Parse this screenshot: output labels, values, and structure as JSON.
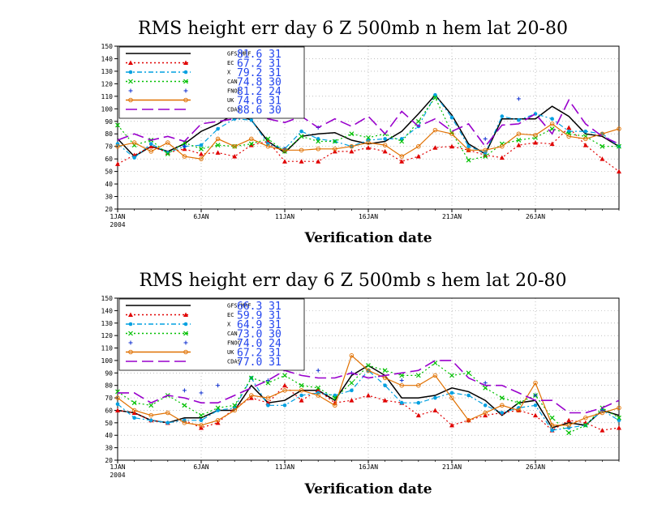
{
  "chart_data": [
    {
      "type": "line",
      "title": "RMS height err   day 6  Z 500mb   n hem   lat 20-80",
      "xlabel": "Verification date",
      "ylim": [
        20,
        150
      ],
      "yticks": [
        20,
        30,
        40,
        50,
        60,
        70,
        80,
        90,
        100,
        110,
        120,
        130,
        140,
        150
      ],
      "x_ticks": [
        {
          "day": 1,
          "label": "1JAN",
          "sub": "2004"
        },
        {
          "day": 6,
          "label": "6JAN"
        },
        {
          "day": 11,
          "label": "11JAN"
        },
        {
          "day": 16,
          "label": "16JAN"
        },
        {
          "day": 21,
          "label": "21JAN"
        },
        {
          "day": 26,
          "label": "26JAN"
        }
      ],
      "grid": true,
      "legend_position": "top-left",
      "series": [
        {
          "name": "GFS/MRF",
          "mean": "81.6",
          "count": "31",
          "color": "#000000",
          "marker": "none",
          "style": "solid",
          "values": [
            76,
            62,
            70,
            66,
            72,
            82,
            88,
            96,
            91,
            74,
            65,
            78,
            80,
            81,
            75,
            72,
            74,
            82,
            96,
            111,
            95,
            72,
            64,
            92,
            92,
            92,
            102,
            94,
            80,
            78,
            70
          ]
        },
        {
          "name": "EC",
          "mean": "67.2",
          "count": "31",
          "color": "#e00000",
          "marker": "triangle",
          "style": "dotted",
          "values": [
            56,
            63,
            70,
            65,
            68,
            64,
            65,
            62,
            71,
            74,
            58,
            58,
            58,
            66,
            66,
            69,
            66,
            58,
            62,
            69,
            70,
            67,
            63,
            61,
            71,
            73,
            72,
            85,
            71,
            60,
            50
          ]
        },
        {
          "name": "X",
          "mean": "79.2",
          "count": "31",
          "color": "#00a0e0",
          "marker": "dot",
          "style": "dashdot",
          "values": [
            72,
            61,
            72,
            65,
            70,
            71,
            84,
            92,
            91,
            72,
            68,
            82,
            76,
            74,
            70,
            75,
            76,
            76,
            86,
            111,
            93,
            70,
            65,
            94,
            91,
            96,
            92,
            82,
            82,
            80,
            70
          ]
        },
        {
          "name": "CAN",
          "mean": "74.8",
          "count": "30",
          "color": "#00c000",
          "marker": "x",
          "style": "dotted",
          "values": [
            87,
            71,
            75,
            64,
            73,
            68,
            71,
            70,
            72,
            76,
            66,
            78,
            74,
            74,
            80,
            77,
            80,
            74,
            90,
            109,
            81,
            59,
            62,
            72,
            75,
            77,
            84,
            80,
            78,
            70,
            70
          ]
        },
        {
          "name": "FNOC",
          "mean": "81.2",
          "count": "24",
          "color": "#1030d0",
          "marker": "plus",
          "style": "none",
          "values": [
            null,
            null,
            null,
            null,
            70,
            null,
            null,
            98,
            100,
            null,
            68,
            null,
            85,
            null,
            null,
            null,
            null,
            null,
            null,
            null,
            null,
            null,
            76,
            null,
            108,
            null,
            null,
            null,
            null,
            null,
            null
          ]
        },
        {
          "name": "UK",
          "mean": "74.6",
          "count": "31",
          "color": "#e07000",
          "marker": "circle",
          "style": "solid",
          "values": [
            70,
            73,
            66,
            73,
            62,
            60,
            76,
            70,
            76,
            70,
            67,
            67,
            68,
            68,
            70,
            73,
            71,
            62,
            70,
            83,
            80,
            67,
            67,
            70,
            80,
            79,
            88,
            78,
            76,
            80,
            84
          ]
        },
        {
          "name": "CDAS",
          "mean": "88.6",
          "count": "30",
          "color": "#9900cc",
          "marker": "none",
          "style": "longdash",
          "values": [
            75,
            80,
            75,
            78,
            74,
            88,
            90,
            92,
            96,
            92,
            89,
            94,
            85,
            92,
            86,
            94,
            80,
            98,
            86,
            92,
            82,
            88,
            70,
            87,
            88,
            96,
            80,
            107,
            88,
            78,
            72
          ]
        }
      ]
    },
    {
      "type": "line",
      "title": "RMS height err   day 6  Z 500mb   s hem   lat 20-80",
      "xlabel": "Verification date",
      "ylim": [
        20,
        150
      ],
      "yticks": [
        20,
        30,
        40,
        50,
        60,
        70,
        80,
        90,
        100,
        110,
        120,
        130,
        140,
        150
      ],
      "x_ticks": [
        {
          "day": 1,
          "label": "1JAN",
          "sub": "2004"
        },
        {
          "day": 6,
          "label": "6JAN"
        },
        {
          "day": 11,
          "label": "11JAN"
        },
        {
          "day": 16,
          "label": "16JAN"
        },
        {
          "day": 21,
          "label": "21JAN"
        },
        {
          "day": 26,
          "label": "26JAN"
        }
      ],
      "grid": true,
      "legend_position": "top-left",
      "series": [
        {
          "name": "GFS/MRF",
          "mean": "66.3",
          "count": "31",
          "color": "#000000",
          "marker": "none",
          "style": "solid",
          "values": [
            60,
            58,
            52,
            50,
            54,
            54,
            60,
            60,
            80,
            66,
            68,
            76,
            76,
            68,
            88,
            96,
            88,
            70,
            70,
            72,
            78,
            75,
            68,
            56,
            66,
            68,
            46,
            50,
            48,
            60,
            56
          ]
        },
        {
          "name": "EC",
          "mean": "59.9",
          "count": "31",
          "color": "#e00000",
          "marker": "triangle",
          "style": "dotted",
          "values": [
            60,
            58,
            52,
            50,
            52,
            46,
            50,
            62,
            70,
            66,
            80,
            68,
            76,
            66,
            68,
            72,
            68,
            66,
            56,
            60,
            48,
            52,
            56,
            58,
            60,
            56,
            44,
            52,
            50,
            44,
            46
          ]
        },
        {
          "name": "X",
          "mean": "64.9",
          "count": "31",
          "color": "#00a0e0",
          "marker": "dot",
          "style": "dashdot",
          "values": [
            65,
            54,
            52,
            50,
            52,
            52,
            60,
            62,
            86,
            64,
            64,
            72,
            74,
            72,
            76,
            92,
            80,
            66,
            66,
            70,
            74,
            72,
            64,
            58,
            62,
            64,
            44,
            46,
            48,
            60,
            52
          ]
        },
        {
          "name": "CAN",
          "mean": "73.0",
          "count": "30",
          "color": "#00c000",
          "marker": "x",
          "style": "dotted",
          "values": [
            75,
            66,
            64,
            72,
            64,
            56,
            62,
            64,
            86,
            82,
            88,
            80,
            78,
            70,
            82,
            96,
            92,
            88,
            88,
            98,
            88,
            90,
            78,
            70,
            66,
            72,
            54,
            42,
            48,
            62,
            54
          ]
        },
        {
          "name": "FNOC",
          "mean": "74.0",
          "count": "24",
          "color": "#1030d0",
          "marker": "plus",
          "style": "none",
          "values": [
            null,
            null,
            null,
            null,
            76,
            74,
            80,
            null,
            null,
            84,
            null,
            null,
            92,
            null,
            90,
            null,
            null,
            84,
            null,
            null,
            null,
            null,
            82,
            null,
            null,
            72,
            null,
            null,
            null,
            60,
            null
          ]
        },
        {
          "name": "UK",
          "mean": "67.2",
          "count": "31",
          "color": "#e07000",
          "marker": "circle",
          "style": "solid",
          "values": [
            70,
            60,
            56,
            58,
            50,
            48,
            52,
            60,
            72,
            70,
            76,
            76,
            72,
            64,
            104,
            92,
            86,
            80,
            80,
            88,
            70,
            52,
            58,
            64,
            60,
            82,
            48,
            48,
            54,
            58,
            62
          ]
        },
        {
          "name": "CDAS",
          "mean": "77.0",
          "count": "31",
          "color": "#9900cc",
          "marker": "none",
          "style": "longdash",
          "values": [
            74,
            74,
            66,
            72,
            70,
            66,
            66,
            72,
            78,
            84,
            92,
            88,
            86,
            86,
            90,
            86,
            88,
            90,
            92,
            100,
            100,
            86,
            80,
            80,
            74,
            68,
            68,
            58,
            58,
            62,
            68
          ]
        }
      ]
    }
  ]
}
